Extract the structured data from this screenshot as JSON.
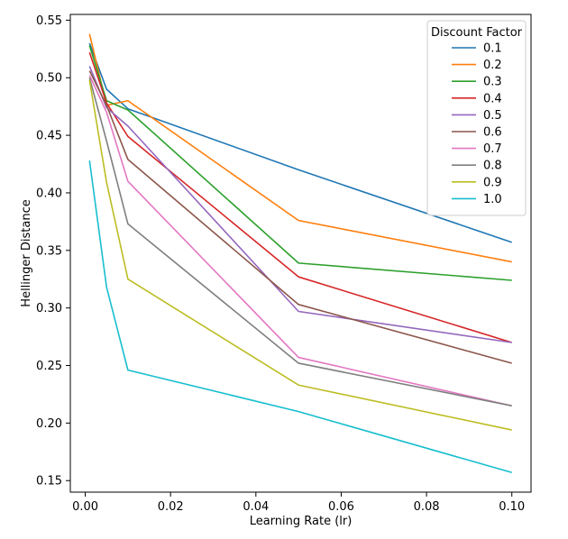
{
  "chart_data": {
    "type": "line",
    "xlabel": "Learning Rate (lr)",
    "ylabel": "Hellinger Distance",
    "xlim": [
      -0.0035,
      0.1045
    ],
    "ylim": [
      0.14,
      0.555
    ],
    "xticks": [
      0.0,
      0.02,
      0.04,
      0.06,
      0.08,
      0.1
    ],
    "xtick_labels": [
      "0.00",
      "0.02",
      "0.04",
      "0.06",
      "0.08",
      "0.10"
    ],
    "yticks": [
      0.15,
      0.2,
      0.25,
      0.3,
      0.35,
      0.4,
      0.45,
      0.5,
      0.55
    ],
    "ytick_labels": [
      "0.15",
      "0.20",
      "0.25",
      "0.30",
      "0.35",
      "0.40",
      "0.45",
      "0.50",
      "0.55"
    ],
    "grid": false,
    "legend": {
      "title": "Discount Factor",
      "placement": "top-right"
    },
    "x": [
      0.001,
      0.005,
      0.01,
      0.05,
      0.1
    ],
    "series": [
      {
        "name": "0.1",
        "color": "#1f77b4",
        "values": [
          0.53,
          0.49,
          0.473,
          0.42,
          0.357
        ]
      },
      {
        "name": "0.2",
        "color": "#ff7f0e",
        "values": [
          0.538,
          0.476,
          0.48,
          0.376,
          0.34
        ]
      },
      {
        "name": "0.3",
        "color": "#2ca02c",
        "values": [
          0.528,
          0.48,
          0.472,
          0.339,
          0.324
        ]
      },
      {
        "name": "0.4",
        "color": "#d62728",
        "values": [
          0.522,
          0.478,
          0.449,
          0.327,
          0.27
        ]
      },
      {
        "name": "0.5",
        "color": "#9467bd",
        "values": [
          0.51,
          0.474,
          0.458,
          0.297,
          0.27
        ]
      },
      {
        "name": "0.6",
        "color": "#8c564b",
        "values": [
          0.506,
          0.476,
          0.429,
          0.303,
          0.252
        ]
      },
      {
        "name": "0.7",
        "color": "#e377c2",
        "values": [
          0.502,
          0.47,
          0.41,
          0.257,
          0.215
        ]
      },
      {
        "name": "0.8",
        "color": "#7f7f7f",
        "values": [
          0.5,
          0.445,
          0.373,
          0.252,
          0.215
        ]
      },
      {
        "name": "0.9",
        "color": "#bcbd22",
        "values": [
          0.498,
          0.409,
          0.325,
          0.233,
          0.194
        ]
      },
      {
        "name": "1.0",
        "color": "#17becf",
        "values": [
          0.428,
          0.318,
          0.246,
          0.21,
          0.157
        ]
      }
    ]
  }
}
